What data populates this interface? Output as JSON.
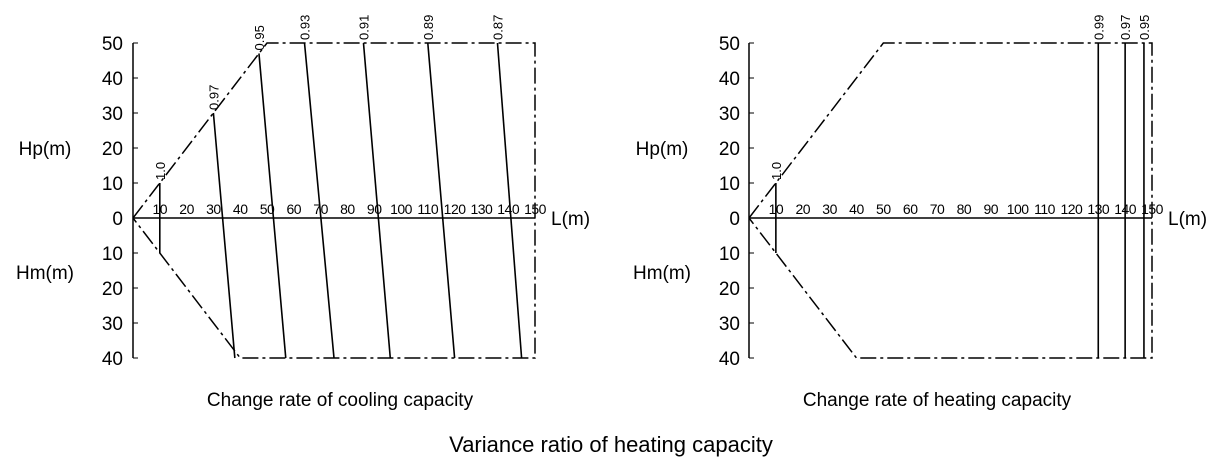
{
  "main_title": "Variance ratio of heating capacity",
  "chart_data": [
    {
      "type": "line",
      "caption": "Change rate of cooling capacity",
      "x_label": "L(m)",
      "y_upper_label": "Hp(m)",
      "y_lower_label": "Hm(m)",
      "x_ticks": [
        "0",
        "10",
        "20",
        "30",
        "40",
        "50",
        "60",
        "70",
        "80",
        "90",
        "100",
        "110",
        "120",
        "130",
        "140",
        "150"
      ],
      "y_upper_ticks": [
        "50",
        "40",
        "30",
        "20",
        "10"
      ],
      "y_lower_ticks": [
        "10",
        "20",
        "30",
        "40"
      ],
      "y_zero_label": "0",
      "xlim": [
        0,
        150
      ],
      "ylim_upper": [
        0,
        50
      ],
      "ylim_lower": [
        0,
        40
      ],
      "boundary": [
        [
          0,
          0
        ],
        [
          10,
          10
        ],
        [
          50,
          50
        ],
        [
          150,
          50
        ],
        [
          150,
          -40
        ],
        [
          40,
          -40
        ],
        [
          10,
          -10
        ],
        [
          0,
          0
        ]
      ],
      "lines": [
        {
          "label": "1.0",
          "points": [
            [
              10,
              10
            ],
            [
              10,
              -10
            ]
          ]
        },
        {
          "label": "0.97",
          "points": [
            [
              30,
              30
            ],
            [
              38,
              -40
            ]
          ]
        },
        {
          "label": "0.95",
          "points": [
            [
              47,
              47
            ],
            [
              57,
              -40
            ]
          ]
        },
        {
          "label": "0.93",
          "points": [
            [
              64,
              50
            ],
            [
              75,
              -40
            ]
          ]
        },
        {
          "label": "0.91",
          "points": [
            [
              86,
              50
            ],
            [
              96,
              -40
            ]
          ]
        },
        {
          "label": "0.89",
          "points": [
            [
              110,
              50
            ],
            [
              120,
              -40
            ]
          ]
        },
        {
          "label": "0.87",
          "points": [
            [
              136,
              50
            ],
            [
              145,
              -40
            ]
          ]
        }
      ]
    },
    {
      "type": "line",
      "caption": "Change rate of heating capacity",
      "x_label": "L(m)",
      "y_upper_label": "Hp(m)",
      "y_lower_label": "Hm(m)",
      "x_ticks": [
        "0",
        "10",
        "20",
        "30",
        "40",
        "50",
        "60",
        "70",
        "80",
        "90",
        "100",
        "110",
        "120",
        "130",
        "140",
        "150"
      ],
      "y_upper_ticks": [
        "50",
        "40",
        "30",
        "20",
        "10"
      ],
      "y_lower_ticks": [
        "10",
        "20",
        "30",
        "40"
      ],
      "y_zero_label": "0",
      "xlim": [
        0,
        150
      ],
      "ylim_upper": [
        0,
        50
      ],
      "ylim_lower": [
        0,
        40
      ],
      "boundary": [
        [
          0,
          0
        ],
        [
          10,
          10
        ],
        [
          50,
          50
        ],
        [
          150,
          50
        ],
        [
          150,
          -40
        ],
        [
          40,
          -40
        ],
        [
          10,
          -10
        ],
        [
          0,
          0
        ]
      ],
      "lines": [
        {
          "label": "1.0",
          "points": [
            [
              10,
              10
            ],
            [
              10,
              -10
            ]
          ]
        },
        {
          "label": "0.99",
          "points": [
            [
              130,
              50
            ],
            [
              130,
              -40
            ]
          ]
        },
        {
          "label": "0.97",
          "points": [
            [
              140,
              50
            ],
            [
              140,
              -40
            ]
          ]
        },
        {
          "label": "0.95",
          "points": [
            [
              147,
              50
            ],
            [
              147,
              -40
            ]
          ]
        }
      ]
    }
  ]
}
